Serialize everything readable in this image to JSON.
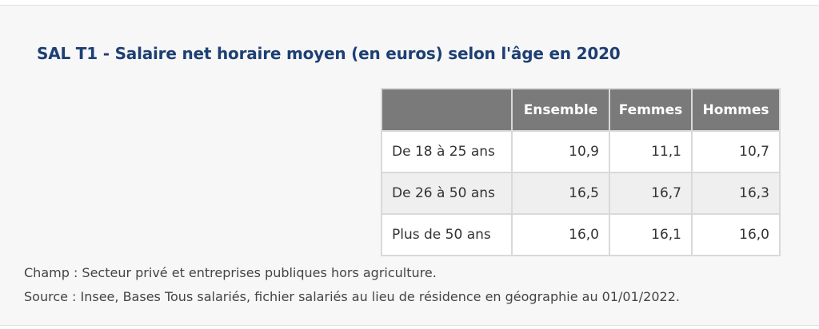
{
  "title": "SAL T1 - Salaire net horaire moyen (en euros) selon l'âge en 2020",
  "table": {
    "headers": [
      "",
      "Ensemble",
      "Femmes",
      "Hommes"
    ],
    "rows": [
      {
        "label": "De 18 à 25 ans",
        "values": [
          "10,9",
          "11,1",
          "10,7"
        ]
      },
      {
        "label": "De 26 à 50 ans",
        "values": [
          "16,5",
          "16,7",
          "16,3"
        ]
      },
      {
        "label": "Plus de 50 ans",
        "values": [
          "16,0",
          "16,1",
          "16,0"
        ]
      }
    ]
  },
  "notes": {
    "champ": "Champ : Secteur privé et entreprises publiques hors agriculture.",
    "source": "Source : Insee, Bases Tous salariés, fichier salariés au lieu de résidence en géographie au 01/01/2022."
  },
  "colors": {
    "title": "#1d3f73",
    "header_bg": "#7a7a7a",
    "header_text": "#ffffff",
    "row_alt_bg": "#efefef",
    "panel_bg": "#f7f7f7"
  }
}
